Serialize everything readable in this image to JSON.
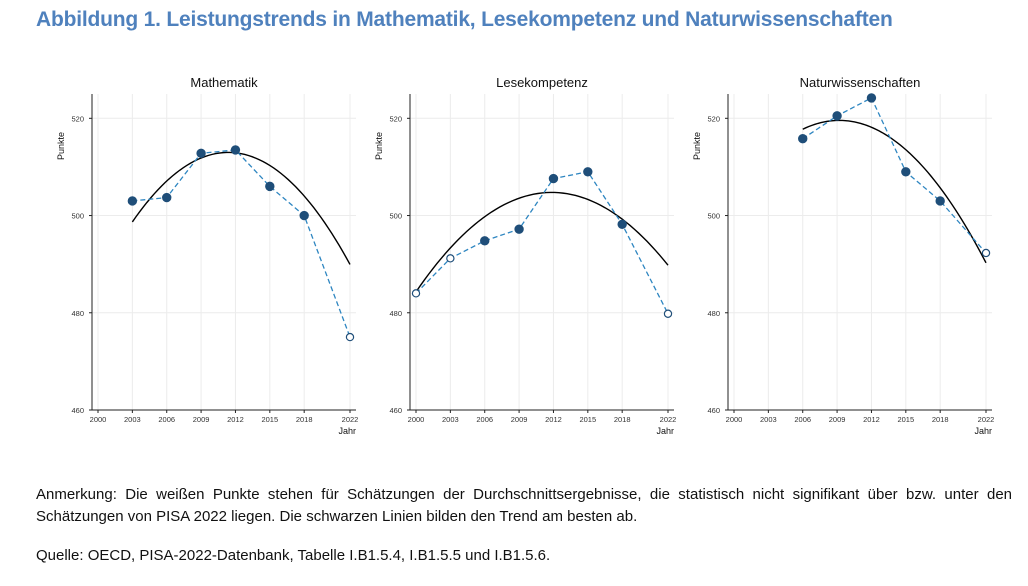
{
  "figure_title": "Abbildung 1. Leistungstrends in Mathematik, Lesekompetenz und Naturwissenschaften",
  "note": "Anmerkung: Die weißen Punkte stehen für Schätzungen der Durchschnittsergebnisse, die statistisch nicht signifikant über bzw. unter den Schätzungen von PISA 2022 liegen. Die schwarzen Linien bilden den Trend am besten ab.",
  "source": "Quelle: OECD, PISA-2022-Datenbank, Tabelle I.B1.5.4, I.B1.5.5 und I.B1.5.6.",
  "colors": {
    "title": "#4f81bd",
    "marker": "#1f4e79",
    "dashed": "#2e86c1",
    "trend": "#000000"
  },
  "chart_data": [
    {
      "type": "line",
      "title": "Mathematik",
      "xlabel": "Jahr",
      "ylabel": "Punkte",
      "xlim": [
        2000,
        2022
      ],
      "ylim": [
        460,
        525
      ],
      "x_ticks": [
        "2000",
        "2003",
        "2006",
        "2009",
        "2012",
        "2015",
        "2018",
        "2022"
      ],
      "y_ticks": [
        "460",
        "480",
        "500",
        "520"
      ],
      "series": [
        {
          "name": "Durchschnittsergebnis",
          "x": [
            2003,
            2006,
            2009,
            2012,
            2015,
            2018,
            2022
          ],
          "values": [
            503,
            503.7,
            512.8,
            513.5,
            506,
            500,
            475
          ],
          "significant": [
            true,
            true,
            true,
            true,
            true,
            true,
            false
          ]
        },
        {
          "name": "Trend",
          "x": [
            2003,
            2022
          ],
          "quadratic": [
            -0.204,
            4.64,
            486.6
          ]
        }
      ]
    },
    {
      "type": "line",
      "title": "Lesekompetenz",
      "xlabel": "Jahr",
      "ylabel": "Punkte",
      "xlim": [
        2000,
        2022
      ],
      "ylim": [
        460,
        525
      ],
      "x_ticks": [
        "2000",
        "2003",
        "2006",
        "2009",
        "2012",
        "2015",
        "2018",
        "2022"
      ],
      "y_ticks": [
        "460",
        "480",
        "500",
        "520"
      ],
      "series": [
        {
          "name": "Durchschnittsergebnis",
          "x": [
            2000,
            2003,
            2006,
            2009,
            2012,
            2015,
            2018,
            2022
          ],
          "values": [
            484,
            491.2,
            494.8,
            497.2,
            507.6,
            509,
            498.2,
            479.8
          ],
          "significant": [
            false,
            false,
            true,
            true,
            true,
            true,
            true,
            false
          ]
        },
        {
          "name": "Trend",
          "x": [
            2000,
            2022
          ],
          "quadratic": [
            -0.1455,
            3.45,
            484.3
          ]
        }
      ]
    },
    {
      "type": "line",
      "title": "Naturwissenschaften",
      "xlabel": "Jahr",
      "ylabel": "Punkte",
      "xlim": [
        2000,
        2022
      ],
      "ylim": [
        460,
        525
      ],
      "x_ticks": [
        "2000",
        "2003",
        "2006",
        "2009",
        "2012",
        "2015",
        "2018",
        "2022"
      ],
      "y_ticks": [
        "460",
        "480",
        "500",
        "520"
      ],
      "series": [
        {
          "name": "Durchschnittsergebnis",
          "x": [
            2006,
            2009,
            2012,
            2015,
            2018,
            2022
          ],
          "values": [
            515.8,
            520.5,
            524.2,
            509,
            503,
            492.3
          ],
          "significant": [
            true,
            true,
            true,
            true,
            true,
            false
          ]
        },
        {
          "name": "Trend",
          "x": [
            2006,
            2022
          ],
          "quadratic": [
            -0.1785,
            3.28,
            504.5
          ]
        }
      ]
    }
  ]
}
